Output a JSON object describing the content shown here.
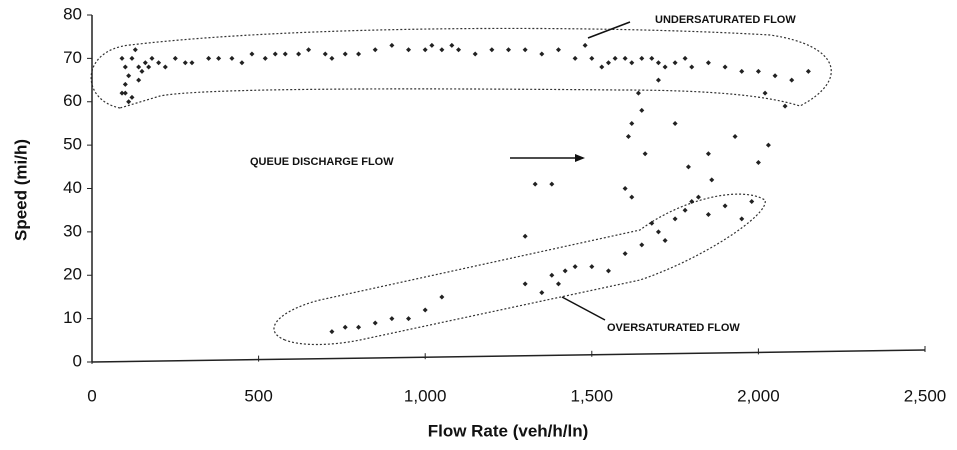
{
  "chart_data": {
    "type": "scatter",
    "xlabel": "Flow Rate (veh/h/ln)",
    "ylabel": "Speed (mi/h)",
    "annotations": [
      "UNDERSATURATED FLOW",
      "QUEUE DISCHARGE FLOW",
      "OVERSATURATED FLOW"
    ],
    "xlim": [
      0,
      2500
    ],
    "ylim": [
      0,
      80
    ],
    "xticks": [
      0,
      500,
      {
        "value": 1000,
        "label": "1,000"
      },
      {
        "value": 1500,
        "label": "1,500"
      },
      {
        "value": 2000,
        "label": "2,000"
      },
      {
        "value": 2500,
        "label": "2,500"
      }
    ],
    "yticks": [
      0,
      10,
      20,
      30,
      40,
      50,
      60,
      70,
      80
    ],
    "color": "#222222",
    "x": [
      90,
      100,
      110,
      100,
      120,
      130,
      90,
      140,
      150,
      160,
      170,
      180,
      200,
      220,
      250,
      280,
      300,
      350,
      380,
      420,
      450,
      480,
      520,
      550,
      580,
      620,
      650,
      700,
      720,
      760,
      800,
      850,
      900,
      950,
      1000,
      1020,
      1050,
      1080,
      1100,
      1150,
      1200,
      1250,
      1300,
      1350,
      1400,
      1450,
      1480,
      1500,
      1530,
      1550,
      1570,
      1600,
      1620,
      1650,
      1680,
      1700,
      1720,
      1750,
      1780,
      1800,
      1850,
      1900,
      1950,
      2000,
      2050,
      2100,
      2150,
      2080,
      2020,
      100,
      120,
      140,
      110,
      1640,
      1650,
      1620,
      1610,
      1660,
      1700,
      1750,
      1790,
      1850,
      1860,
      1930,
      2000,
      2030,
      1600,
      1620,
      1330,
      1380,
      720,
      760,
      800,
      850,
      900,
      950,
      1000,
      1050,
      1300,
      1300,
      1380,
      1420,
      1450,
      1500,
      1550,
      1600,
      1650,
      1700,
      1720,
      1750,
      1780,
      1800,
      1850,
      1900,
      1950,
      1980,
      1820,
      1680,
      1350,
      1400
    ],
    "y": [
      62,
      64,
      66,
      68,
      70,
      72,
      70,
      68,
      67,
      69,
      68,
      70,
      69,
      68,
      70,
      69,
      69,
      70,
      70,
      70,
      69,
      71,
      70,
      71,
      71,
      71,
      72,
      71,
      70,
      71,
      71,
      72,
      73,
      72,
      72,
      73,
      72,
      73,
      72,
      71,
      72,
      72,
      72,
      71,
      72,
      70,
      73,
      70,
      68,
      69,
      70,
      70,
      69,
      70,
      70,
      69,
      68,
      69,
      70,
      68,
      69,
      68,
      67,
      67,
      66,
      65,
      67,
      59,
      62,
      62,
      61,
      65,
      60,
      62,
      58,
      55,
      52,
      48,
      65,
      55,
      45,
      48,
      42,
      52,
      46,
      50,
      40,
      38,
      41,
      41,
      7,
      8,
      8,
      9,
      10,
      10,
      12,
      15,
      18,
      29,
      20,
      21,
      22,
      22,
      21,
      25,
      27,
      30,
      28,
      33,
      35,
      37,
      34,
      36,
      33,
      37,
      38,
      32,
      16,
      18
    ]
  }
}
